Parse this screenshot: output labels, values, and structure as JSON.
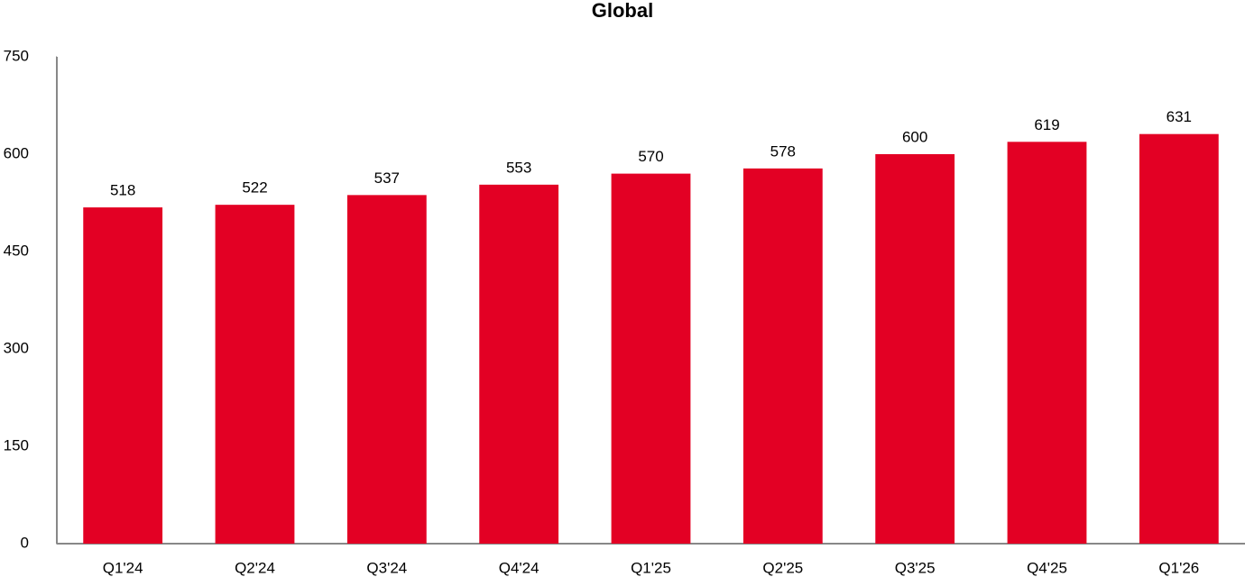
{
  "chart_data": {
    "type": "bar",
    "title": "Global",
    "categories": [
      "Q1'24",
      "Q2'24",
      "Q3'24",
      "Q4'24",
      "Q1'25",
      "Q2'25",
      "Q3'25",
      "Q4'25",
      "Q1'26"
    ],
    "values": [
      518,
      522,
      537,
      553,
      570,
      578,
      600,
      619,
      631
    ],
    "color": "#e30024",
    "ylim": [
      0,
      750
    ],
    "yticks": [
      0,
      150,
      300,
      450,
      600,
      750
    ],
    "grid": false
  }
}
